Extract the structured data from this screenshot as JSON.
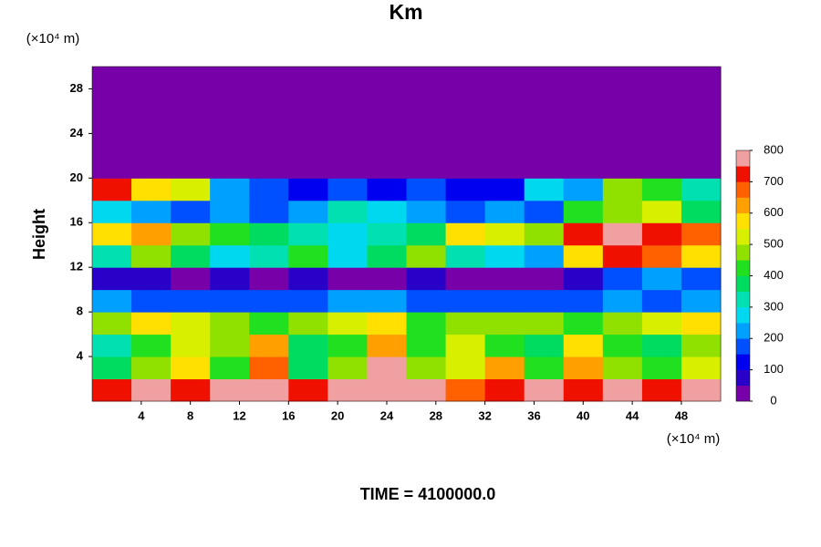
{
  "chart_data": {
    "type": "heatmap",
    "title": "Km",
    "y_unit": "(×10⁴ m)",
    "x_unit": "(×10⁴ m)",
    "ylabel": "Height",
    "footer": "TIME = 4100000.0",
    "xbins": [
      0,
      3.2,
      6.4,
      9.6,
      12.8,
      16,
      19.2,
      22.4,
      25.6,
      28.8,
      32,
      35.2,
      38.4,
      41.6,
      44.8,
      48,
      51.2
    ],
    "ybins": [
      0,
      2,
      4,
      6,
      8,
      10,
      12,
      14,
      16,
      18,
      20,
      22,
      24,
      26,
      28,
      30
    ],
    "z": [
      [
        700,
        750,
        700,
        750,
        750,
        700,
        750,
        800,
        750,
        650,
        700,
        750,
        700,
        750,
        700,
        750
      ],
      [
        350,
        450,
        550,
        400,
        650,
        350,
        450,
        750,
        450,
        500,
        600,
        400,
        600,
        450,
        400,
        500
      ],
      [
        300,
        400,
        500,
        450,
        600,
        350,
        400,
        600,
        400,
        500,
        400,
        350,
        550,
        400,
        350,
        450
      ],
      [
        450,
        550,
        500,
        450,
        400,
        450,
        500,
        550,
        400,
        450,
        450,
        450,
        400,
        450,
        500,
        550
      ],
      [
        200,
        150,
        150,
        150,
        150,
        150,
        200,
        200,
        150,
        150,
        150,
        150,
        150,
        200,
        150,
        200
      ],
      [
        50,
        50,
        30,
        60,
        40,
        50,
        30,
        40,
        50,
        30,
        30,
        40,
        60,
        150,
        200,
        150
      ],
      [
        300,
        450,
        350,
        250,
        300,
        400,
        250,
        350,
        450,
        300,
        250,
        200,
        550,
        700,
        650,
        550
      ],
      [
        550,
        600,
        450,
        400,
        350,
        300,
        250,
        300,
        350,
        550,
        500,
        450,
        700,
        750,
        700,
        650
      ],
      [
        250,
        200,
        150,
        200,
        150,
        200,
        300,
        250,
        200,
        150,
        200,
        150,
        400,
        450,
        500,
        350
      ],
      [
        700,
        550,
        500,
        200,
        150,
        100,
        150,
        100,
        150,
        100,
        100,
        250,
        200,
        450,
        400,
        300
      ],
      [
        0,
        0,
        0,
        0,
        0,
        0,
        0,
        0,
        0,
        0,
        0,
        0,
        0,
        0,
        0,
        0
      ],
      [
        0,
        0,
        0,
        0,
        0,
        0,
        0,
        0,
        0,
        0,
        0,
        0,
        0,
        0,
        0,
        0
      ],
      [
        0,
        0,
        0,
        0,
        0,
        0,
        0,
        0,
        0,
        0,
        0,
        0,
        0,
        0,
        0,
        0
      ],
      [
        0,
        0,
        0,
        0,
        0,
        0,
        0,
        0,
        0,
        0,
        0,
        0,
        0,
        0,
        0,
        0
      ],
      [
        0,
        0,
        0,
        0,
        0,
        0,
        0,
        0,
        0,
        0,
        0,
        0,
        0,
        0,
        0,
        0
      ]
    ],
    "xlim": [
      0,
      51.2
    ],
    "ylim": [
      0,
      30
    ],
    "xticks": [
      4,
      8,
      12,
      16,
      20,
      24,
      28,
      32,
      36,
      40,
      44,
      48
    ],
    "yticks": [
      4,
      8,
      12,
      16,
      20,
      24,
      28
    ],
    "levels": [
      0,
      50,
      100,
      150,
      200,
      250,
      300,
      350,
      400,
      450,
      500,
      550,
      600,
      650,
      700,
      750,
      800
    ],
    "colors": [
      "#7800a8",
      "#2800c8",
      "#0000f0",
      "#0050ff",
      "#00a0ff",
      "#00d8f0",
      "#00e0b0",
      "#00dc60",
      "#20e020",
      "#90e000",
      "#d8f000",
      "#ffe000",
      "#ffa000",
      "#ff6000",
      "#f01000",
      "#f0a0a0"
    ],
    "cbticks": [
      0,
      100,
      200,
      300,
      400,
      500,
      600,
      700,
      800
    ]
  }
}
